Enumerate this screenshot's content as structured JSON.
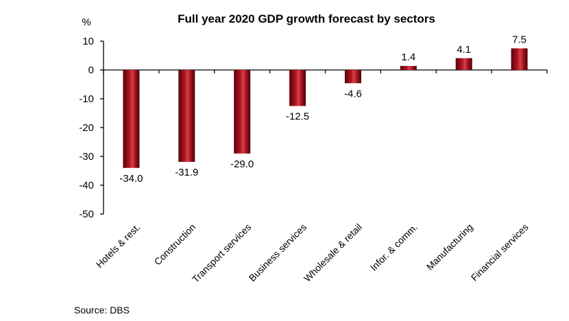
{
  "chart_data": {
    "type": "bar",
    "title": "Full year 2020 GDP growth forecast by sectors",
    "unit": "%",
    "categories": [
      "Hotels & rest.",
      "Construction",
      "Transport services",
      "Business services",
      "Wholesale & retail",
      "Infor. & comm.",
      "Manufacturing",
      "Financial services"
    ],
    "values": [
      -34.0,
      -31.9,
      -29.0,
      -12.5,
      -4.6,
      1.4,
      4.1,
      7.5
    ],
    "value_labels": [
      "-34.0",
      "-31.9",
      "-29.0",
      "-12.5",
      "-4.6",
      "1.4",
      "4.1",
      "7.5"
    ],
    "ylim": [
      -50,
      10
    ],
    "yticks": [
      10,
      0,
      -10,
      -20,
      -30,
      -40,
      -50
    ],
    "ytick_labels": [
      "10",
      "0",
      "-10",
      "-20",
      "-30",
      "-40",
      "-50"
    ],
    "grid": false,
    "bar_color": "#a0141e"
  },
  "source": "Source: DBS"
}
